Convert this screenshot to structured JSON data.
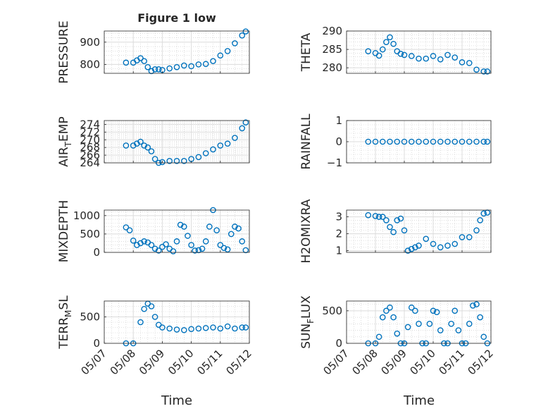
{
  "figure": {
    "title": "Figure 1 low",
    "xlabel": "Time",
    "marker_color": "#0072BD"
  },
  "x_ticks": [
    "05/07",
    "05/08",
    "05/09",
    "05/10",
    "05/11",
    "05/12"
  ],
  "chart_data": [
    {
      "type": "scatter",
      "ylabel": "PRESSURE",
      "ylim": [
        760,
        950
      ],
      "yticks": [
        800,
        900
      ],
      "grid": true,
      "x": [
        "05/07 18:00",
        "05/08 00:00",
        "05/08 03:00",
        "05/08 06:00",
        "05/08 09:00",
        "05/08 12:00",
        "05/08 15:00",
        "05/08 18:00",
        "05/08 21:00",
        "05/09 00:00",
        "05/09 06:00",
        "05/09 12:00",
        "05/09 18:00",
        "05/10 00:00",
        "05/10 06:00",
        "05/10 12:00",
        "05/10 18:00",
        "05/11 00:00",
        "05/11 06:00",
        "05/11 12:00",
        "05/11 18:00",
        "05/11 21:00"
      ],
      "y": [
        808,
        808,
        818,
        828,
        815,
        788,
        770,
        778,
        778,
        775,
        782,
        788,
        795,
        792,
        800,
        802,
        815,
        840,
        860,
        895,
        930,
        948
      ]
    },
    {
      "type": "scatter",
      "ylabel": "THETA",
      "ylim": [
        278.5,
        290
      ],
      "yticks": [
        280,
        285,
        290
      ],
      "grid": true,
      "x": [
        "05/07 18:00",
        "05/08 00:00",
        "05/08 03:00",
        "05/08 06:00",
        "05/08 09:00",
        "05/08 12:00",
        "05/08 15:00",
        "05/08 18:00",
        "05/08 21:00",
        "05/09 00:00",
        "05/09 06:00",
        "05/09 12:00",
        "05/09 18:00",
        "05/10 00:00",
        "05/10 06:00",
        "05/10 12:00",
        "05/10 18:00",
        "05/11 00:00",
        "05/11 06:00",
        "05/11 12:00",
        "05/11 18:00",
        "05/11 21:00"
      ],
      "y": [
        284.5,
        284,
        283.3,
        285,
        287,
        288.3,
        286.5,
        284.5,
        283.8,
        283.5,
        283.2,
        282.5,
        282.5,
        283.2,
        282.3,
        283.5,
        282.8,
        281.5,
        281.3,
        279.5,
        279,
        279
      ]
    },
    {
      "type": "scatter",
      "ylabel": "AIR_TEMP",
      "ylim": [
        264,
        275
      ],
      "yticks": [
        264,
        266,
        268,
        270,
        272,
        274
      ],
      "grid": true,
      "x": [
        "05/07 18:00",
        "05/08 00:00",
        "05/08 03:00",
        "05/08 06:00",
        "05/08 09:00",
        "05/08 12:00",
        "05/08 15:00",
        "05/08 18:00",
        "05/08 21:00",
        "05/09 00:00",
        "05/09 06:00",
        "05/09 12:00",
        "05/09 18:00",
        "05/10 00:00",
        "05/10 06:00",
        "05/10 12:00",
        "05/10 18:00",
        "05/11 00:00",
        "05/11 06:00",
        "05/11 12:00",
        "05/11 18:00",
        "05/11 21:00"
      ],
      "y": [
        268.5,
        268.5,
        269,
        269.5,
        268.5,
        268,
        267,
        265,
        264,
        264.2,
        264.5,
        264.5,
        264.5,
        265,
        265.5,
        266.5,
        267.5,
        268.5,
        269,
        270.5,
        273,
        274.5
      ]
    },
    {
      "type": "scatter",
      "ylabel": "RAINFALL",
      "ylim": [
        -1,
        1
      ],
      "yticks": [
        -1,
        0,
        1
      ],
      "grid": true,
      "x": [
        "05/07 18:00",
        "05/08 00:00",
        "05/08 06:00",
        "05/08 12:00",
        "05/08 18:00",
        "05/09 00:00",
        "05/09 06:00",
        "05/09 12:00",
        "05/09 18:00",
        "05/10 00:00",
        "05/10 06:00",
        "05/10 12:00",
        "05/10 18:00",
        "05/11 00:00",
        "05/11 06:00",
        "05/11 12:00",
        "05/11 18:00",
        "05/11 21:00"
      ],
      "y": [
        0,
        0,
        0,
        0,
        0,
        0,
        0,
        0,
        0,
        0,
        0,
        0,
        0,
        0,
        0,
        0,
        0,
        0
      ]
    },
    {
      "type": "scatter",
      "ylabel": "MIXDEPTH",
      "ylim": [
        0,
        1150
      ],
      "yticks": [
        0,
        500,
        1000
      ],
      "grid": true,
      "x": [
        "05/07 18:00",
        "05/07 21:00",
        "05/08 00:00",
        "05/08 03:00",
        "05/08 06:00",
        "05/08 09:00",
        "05/08 12:00",
        "05/08 15:00",
        "05/08 18:00",
        "05/08 21:00",
        "05/09 00:00",
        "05/09 03:00",
        "05/09 06:00",
        "05/09 09:00",
        "05/09 12:00",
        "05/09 15:00",
        "05/09 18:00",
        "05/09 21:00",
        "05/10 00:00",
        "05/10 03:00",
        "05/10 06:00",
        "05/10 09:00",
        "05/10 12:00",
        "05/10 15:00",
        "05/10 18:00",
        "05/10 21:00",
        "05/11 00:00",
        "05/11 03:00",
        "05/11 06:00",
        "05/11 09:00",
        "05/11 12:00",
        "05/11 15:00",
        "05/11 18:00",
        "05/11 21:00"
      ],
      "y": [
        680,
        600,
        320,
        200,
        250,
        300,
        270,
        200,
        100,
        50,
        150,
        220,
        100,
        30,
        300,
        750,
        700,
        450,
        200,
        50,
        60,
        100,
        300,
        700,
        1150,
        600,
        200,
        120,
        80,
        500,
        700,
        650,
        300,
        60
      ]
    },
    {
      "type": "scatter",
      "ylabel": "H2OMIXRA",
      "ylim": [
        0.9,
        3.4
      ],
      "yticks": [
        1,
        2,
        3
      ],
      "grid": true,
      "x": [
        "05/07 18:00",
        "05/08 00:00",
        "05/08 03:00",
        "05/08 06:00",
        "05/08 09:00",
        "05/08 12:00",
        "05/08 15:00",
        "05/08 18:00",
        "05/08 21:00",
        "05/09 00:00",
        "05/09 03:00",
        "05/09 06:00",
        "05/09 09:00",
        "05/09 12:00",
        "05/09 18:00",
        "05/10 00:00",
        "05/10 06:00",
        "05/10 12:00",
        "05/10 18:00",
        "05/11 00:00",
        "05/11 06:00",
        "05/11 12:00",
        "05/11 15:00",
        "05/11 18:00",
        "05/11 21:00"
      ],
      "y": [
        3.1,
        3.05,
        3,
        3,
        2.8,
        2.4,
        2.1,
        2.8,
        2.9,
        2.2,
        1,
        1.1,
        1.2,
        1.3,
        1.7,
        1.4,
        1.2,
        1.3,
        1.4,
        1.8,
        1.8,
        2.2,
        2.8,
        3.2,
        3.25
      ]
    },
    {
      "type": "scatter",
      "ylabel": "TERR_MSL",
      "ylim": [
        0,
        800
      ],
      "yticks": [
        0,
        500
      ],
      "grid": true,
      "x": [
        "05/07 18:00",
        "05/08 00:00",
        "05/08 06:00",
        "05/08 09:00",
        "05/08 12:00",
        "05/08 15:00",
        "05/08 18:00",
        "05/08 21:00",
        "05/09 00:00",
        "05/09 06:00",
        "05/09 12:00",
        "05/09 18:00",
        "05/10 00:00",
        "05/10 06:00",
        "05/10 12:00",
        "05/10 18:00",
        "05/11 00:00",
        "05/11 06:00",
        "05/11 12:00",
        "05/11 18:00",
        "05/11 21:00"
      ],
      "y": [
        0,
        0,
        400,
        650,
        750,
        700,
        500,
        350,
        300,
        280,
        260,
        250,
        270,
        280,
        290,
        300,
        280,
        320,
        280,
        300,
        300
      ]
    },
    {
      "type": "scatter",
      "ylabel": "SUN_FLUX",
      "ylim": [
        0,
        650
      ],
      "yticks": [
        0,
        500
      ],
      "grid": true,
      "x": [
        "05/07 18:00",
        "05/08 00:00",
        "05/08 03:00",
        "05/08 06:00",
        "05/08 09:00",
        "05/08 12:00",
        "05/08 15:00",
        "05/08 18:00",
        "05/08 21:00",
        "05/09 00:00",
        "05/09 03:00",
        "05/09 06:00",
        "05/09 09:00",
        "05/09 12:00",
        "05/09 15:00",
        "05/09 18:00",
        "05/09 21:00",
        "05/10 00:00",
        "05/10 03:00",
        "05/10 06:00",
        "05/10 09:00",
        "05/10 12:00",
        "05/10 15:00",
        "05/10 18:00",
        "05/10 21:00",
        "05/11 00:00",
        "05/11 03:00",
        "05/11 06:00",
        "05/11 09:00",
        "05/11 12:00",
        "05/11 15:00",
        "05/11 18:00",
        "05/11 21:00"
      ],
      "y": [
        0,
        0,
        100,
        400,
        500,
        550,
        400,
        150,
        0,
        0,
        250,
        550,
        500,
        300,
        0,
        0,
        300,
        500,
        480,
        200,
        0,
        0,
        300,
        500,
        200,
        0,
        0,
        300,
        580,
        600,
        400,
        100,
        0
      ]
    }
  ]
}
